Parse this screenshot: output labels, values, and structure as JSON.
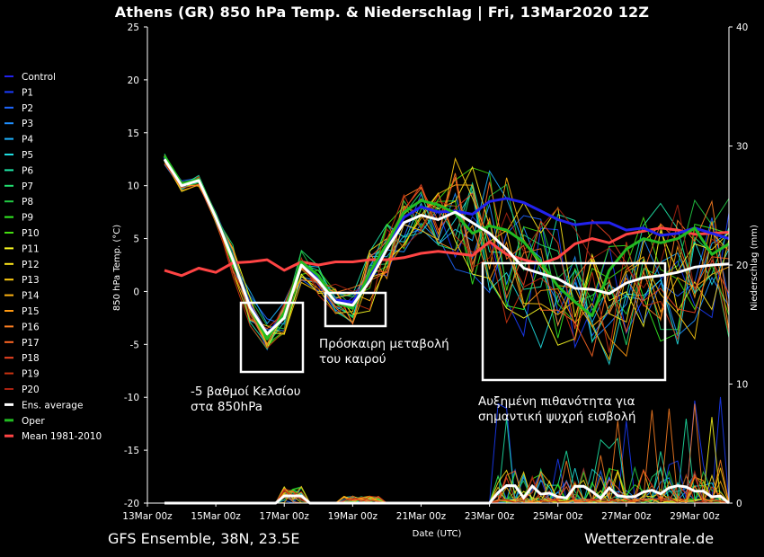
{
  "header": {
    "title": "Athens  (GR)  850 hPa Temp. & Niederschlag | Fri, 13Mar2020 12Z"
  },
  "footer": {
    "left": "GFS Ensemble, 38N, 23.5E",
    "right": "Wetterzentrale.de"
  },
  "annotations": [
    {
      "lines": [
        "Πρόσκαιρη μεταβολή",
        "του καιρού"
      ]
    },
    {
      "lines": [
        "-5 βαθμοί Κελσίου",
        "στα 850hPa"
      ]
    },
    {
      "lines": [
        "Αυξημένη πιθανότητα για",
        "σημαντική ψυχρή εισβολή"
      ]
    }
  ],
  "colors": {
    "background": "#000000",
    "axis": "#ffffff",
    "box": "#ffffff",
    "ens_average": "#ffffff",
    "oper": "#22bb22",
    "mean": "#ff4444",
    "control": "#2222ee"
  },
  "chart_data": {
    "type": "line",
    "title": "Athens  (GR)  850 hPa Temp. & Niederschlag | Fri, 13Mar2020 12Z",
    "xlabel": "Date (UTC)",
    "ylabel": "850 hPa Temp. (°C)",
    "ylabel_right": "Niederschlag (mm)",
    "x_range": [
      "2020-03-13 00:00",
      "2020-03-30 00:00"
    ],
    "x_tick_labels": [
      "13Mar 00z",
      "15Mar 00z",
      "17Mar 00z",
      "19Mar 00z",
      "21Mar 00z",
      "23Mar 00z",
      "25Mar 00z",
      "27Mar 00z",
      "29Mar 00z"
    ],
    "ylim": [
      -20,
      25
    ],
    "y_ticks": [
      25,
      20,
      15,
      10,
      5,
      0,
      -5,
      -10,
      -15,
      -20
    ],
    "ylim_right": [
      0,
      40
    ],
    "y_ticks_right": [
      40,
      30,
      20,
      10,
      0
    ],
    "grid": false,
    "legend_position": "left",
    "legend": [
      {
        "name": "Control",
        "color": "#2222ee"
      },
      {
        "name": "P1",
        "color": "#1a3cff"
      },
      {
        "name": "P2",
        "color": "#1f66ff"
      },
      {
        "name": "P3",
        "color": "#1f8fff"
      },
      {
        "name": "P4",
        "color": "#1fb3ff"
      },
      {
        "name": "P5",
        "color": "#1fdde0"
      },
      {
        "name": "P6",
        "color": "#1fe8a8"
      },
      {
        "name": "P7",
        "color": "#22e070"
      },
      {
        "name": "P8",
        "color": "#22cc44"
      },
      {
        "name": "P9",
        "color": "#33ee22"
      },
      {
        "name": "P10",
        "color": "#44dd11"
      },
      {
        "name": "P11",
        "color": "#ffff22"
      },
      {
        "name": "P12",
        "color": "#ffe61a"
      },
      {
        "name": "P13",
        "color": "#ffcc11"
      },
      {
        "name": "P14",
        "color": "#ffb311"
      },
      {
        "name": "P15",
        "color": "#ff9911"
      },
      {
        "name": "P16",
        "color": "#ff8022"
      },
      {
        "name": "P17",
        "color": "#ff6622"
      },
      {
        "name": "P18",
        "color": "#ee4422"
      },
      {
        "name": "P19",
        "color": "#cc3311"
      },
      {
        "name": "P20",
        "color": "#aa2211"
      },
      {
        "name": "Ens. average",
        "color": "#ffffff"
      },
      {
        "name": "Oper",
        "color": "#22bb22"
      },
      {
        "name": "Mean 1981-2010",
        "color": "#ff4444"
      }
    ],
    "series": [
      {
        "name": "Ens. average",
        "color": "#ffffff",
        "x": [
          0.5,
          1,
          1.5,
          2,
          2.5,
          3,
          3.5,
          4,
          4.5,
          5,
          5.5,
          6,
          6.5,
          7,
          7.5,
          8,
          8.5,
          9,
          9.5,
          10,
          10.5,
          11,
          11.5,
          12,
          12.5,
          13,
          13.5,
          14,
          14.5,
          15,
          15.5,
          16,
          16.5,
          17
        ],
        "y": [
          12.5,
          10,
          10.5,
          7,
          3,
          -1.5,
          -4,
          -2.5,
          2.5,
          1,
          -1,
          -1.3,
          1,
          4,
          6.5,
          7.2,
          6.8,
          7.5,
          6.5,
          5.5,
          4,
          2.2,
          1.7,
          1.2,
          0.3,
          0.2,
          -0.2,
          0.8,
          1.3,
          1.5,
          1.8,
          2.3,
          2.5,
          2.6
        ]
      },
      {
        "name": "Oper",
        "color": "#22bb22",
        "x": [
          0.5,
          1,
          1.5,
          2,
          2.5,
          3,
          3.5,
          4,
          4.5,
          5,
          5.5,
          6,
          6.5,
          7,
          7.5,
          8,
          8.5,
          9,
          9.5,
          10,
          10.5,
          11,
          11.5,
          12,
          12.5,
          13,
          13.5,
          14,
          14.5,
          15,
          15.5,
          16,
          16.5,
          17
        ],
        "y": [
          12.8,
          10.2,
          10.6,
          7.2,
          3.2,
          -1.5,
          -4.5,
          -2,
          2.8,
          1.5,
          -1,
          -1.6,
          1.8,
          4.5,
          7.5,
          8.6,
          8.2,
          7.4,
          5.5,
          6.2,
          5.8,
          4.7,
          2.8,
          0.5,
          -1,
          -2.3,
          2,
          4,
          5,
          4.6,
          5,
          6,
          3.5,
          4.5
        ]
      },
      {
        "name": "Control",
        "color": "#2222ee",
        "x": [
          0.5,
          1,
          1.5,
          2,
          2.5,
          3,
          3.5,
          4,
          4.5,
          5,
          5.5,
          6,
          6.5,
          7,
          7.5,
          8,
          8.5,
          9,
          9.5,
          10,
          10.5,
          11,
          11.5,
          12,
          12.5,
          13,
          13.5,
          14,
          14.5,
          15,
          15.5,
          16,
          16.5,
          17
        ],
        "y": [
          12.7,
          10.1,
          10.5,
          7.3,
          3.3,
          -1.3,
          -4,
          -2.2,
          2.7,
          1.2,
          -0.8,
          -1,
          1.5,
          4.2,
          7,
          8,
          7.5,
          7.6,
          7.3,
          8.5,
          8.8,
          8.4,
          7.6,
          6.8,
          6.3,
          6.5,
          6.5,
          5.8,
          6,
          5.3,
          5.5,
          6,
          5.5,
          5
        ]
      },
      {
        "name": "Mean 1981-2010",
        "color": "#ff4444",
        "x": [
          0.5,
          1,
          1.5,
          2,
          2.5,
          3,
          3.5,
          4,
          4.5,
          5,
          5.5,
          6,
          6.5,
          7,
          7.5,
          8,
          8.5,
          9,
          9.5,
          10,
          10.5,
          11,
          11.5,
          12,
          12.5,
          13,
          13.5,
          14,
          14.5,
          15,
          15.5,
          16,
          16.5,
          17
        ],
        "y": [
          2,
          1.5,
          2.2,
          1.8,
          2.7,
          2.8,
          3,
          2,
          2.8,
          2.5,
          2.8,
          2.8,
          3,
          3,
          3.2,
          3.6,
          3.8,
          3.6,
          3.4,
          4.7,
          3.5,
          3,
          2.6,
          3.2,
          4.5,
          5,
          4.6,
          5.4,
          5.7,
          6,
          5.8,
          5.4,
          5.5,
          5.6
        ]
      }
    ]
  }
}
